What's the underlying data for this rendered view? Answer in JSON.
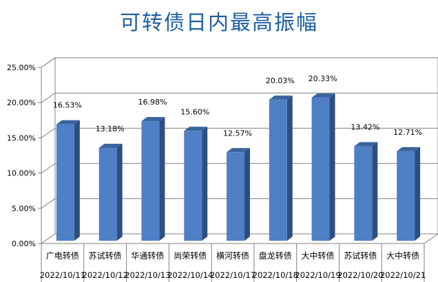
{
  "chart_data": {
    "type": "bar",
    "title": "可转债日内最高振幅",
    "xlabel": "",
    "ylabel": "",
    "categories": [
      "广电转债",
      "苏试转债",
      "华通转债",
      "尚荣转债",
      "横河转债",
      "盘龙转债",
      "大中转债",
      "苏试转债",
      "大中转债"
    ],
    "dates": [
      "2022/10/11",
      "2022/10/12",
      "2022/10/13",
      "2022/10/14",
      "2022/10/17",
      "2022/10/18",
      "2022/10/19",
      "2022/10/20",
      "2022/10/21"
    ],
    "values": [
      16.53,
      13.18,
      16.98,
      15.6,
      12.57,
      20.03,
      20.33,
      13.42,
      12.71
    ],
    "value_labels": [
      "16.53%",
      "13.18%",
      "16.98%",
      "15.60%",
      "12.57%",
      "20.03%",
      "20.33%",
      "13.42%",
      "12.71%"
    ],
    "yticks": [
      "0.00%",
      "5.00%",
      "10.00%",
      "15.00%",
      "20.00%",
      "25.00%"
    ],
    "ylim": [
      0,
      25
    ],
    "grid": true,
    "legend": "none",
    "colors": {
      "bar_front": "#4f7fc4",
      "bar_side": "#2c4f80",
      "bar_top": "#3a64a0",
      "title": "#1f5fa3",
      "grid": "#7f7f7f",
      "wall": "#ffffff"
    }
  }
}
